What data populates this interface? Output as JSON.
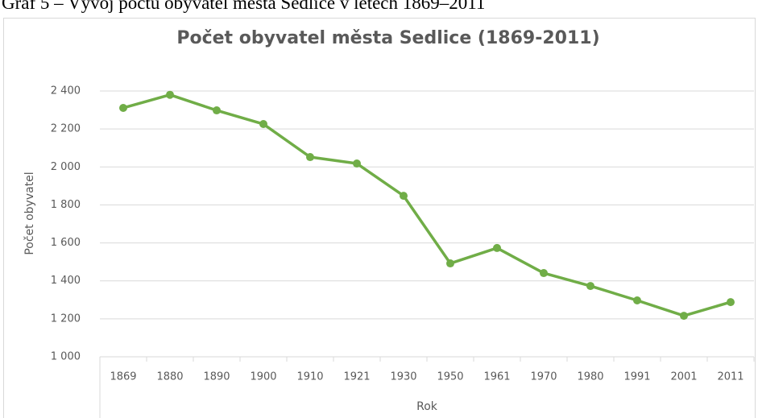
{
  "caption": "Graf 5 – Vývoj počtu obyvatel města Sedlice v letech 1869–2011",
  "chart_data": {
    "type": "line",
    "title": "Počet obyvatel města Sedlice (1869-2011)",
    "x_label": "Rok",
    "y_label": "Počet obyvatel",
    "categories": [
      "1869",
      "1880",
      "1890",
      "1900",
      "1910",
      "1921",
      "1930",
      "1950",
      "1961",
      "1970",
      "1980",
      "1991",
      "2001",
      "2011"
    ],
    "series": [
      {
        "name": "Počet obyvatel",
        "color": "#70ad47",
        "values": [
          2311,
          2380,
          2298,
          2226,
          2052,
          2018,
          1848,
          1492,
          1573,
          1441,
          1373,
          1297,
          1216,
          1288
        ]
      }
    ],
    "ylim": [
      1000,
      2400
    ],
    "yticks": [
      {
        "value": 1000,
        "label": "1 000"
      },
      {
        "value": 1200,
        "label": "1 200"
      },
      {
        "value": 1400,
        "label": "1 400"
      },
      {
        "value": 1600,
        "label": "1 600"
      },
      {
        "value": 1800,
        "label": "1 800"
      },
      {
        "value": 2000,
        "label": "2 000"
      },
      {
        "value": 2200,
        "label": "2 200"
      },
      {
        "value": 2400,
        "label": "2 400"
      }
    ],
    "grid": true
  }
}
